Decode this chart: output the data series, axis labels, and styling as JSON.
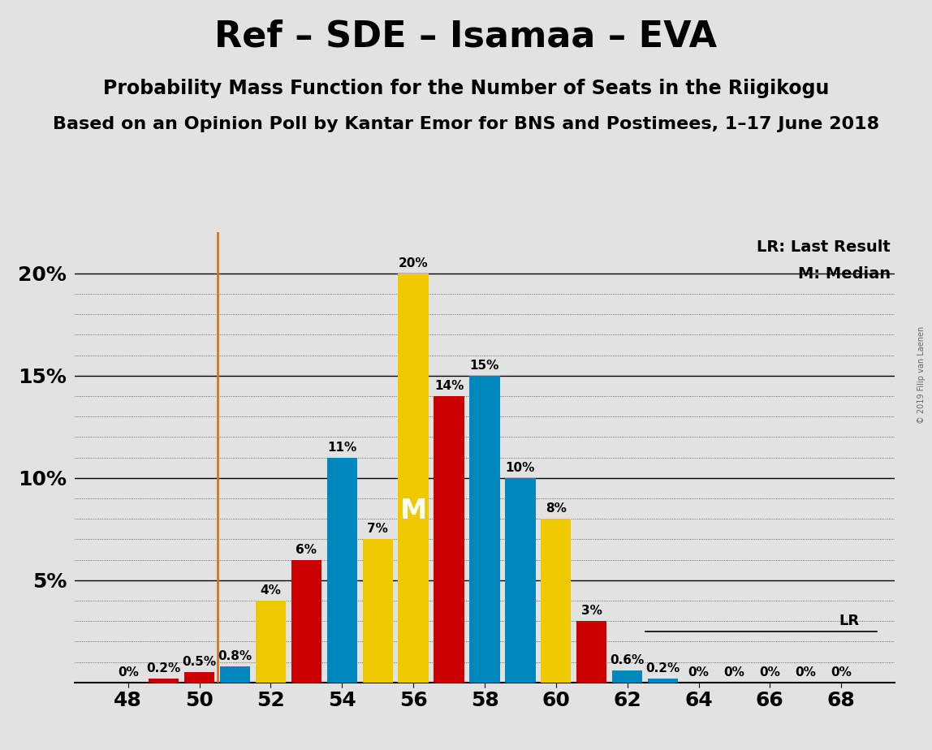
{
  "title": "Ref – SDE – Isamaa – EVA",
  "subtitle1": "Probability Mass Function for the Number of Seats in the Riigikogu",
  "subtitle2": "Based on an Opinion Poll by Kantar Emor for BNS and Postimees, 1–17 June 2018",
  "copyright": "© 2019 Filip van Laenen",
  "background_color": "#e2e2e2",
  "plot_bg_color": "#e2e2e2",
  "bar_data": [
    {
      "seat": 48,
      "color": "red",
      "value": 0.0,
      "label": "0%"
    },
    {
      "seat": 49,
      "color": "red",
      "value": 0.2,
      "label": "0.2%"
    },
    {
      "seat": 50,
      "color": "red",
      "value": 0.5,
      "label": "0.5%"
    },
    {
      "seat": 51,
      "color": "blue",
      "value": 0.8,
      "label": "0.8%"
    },
    {
      "seat": 52,
      "color": "yellow",
      "value": 4.0,
      "label": "4%"
    },
    {
      "seat": 53,
      "color": "red",
      "value": 6.0,
      "label": "6%"
    },
    {
      "seat": 54,
      "color": "blue",
      "value": 11.0,
      "label": "11%"
    },
    {
      "seat": 55,
      "color": "yellow",
      "value": 7.0,
      "label": "7%"
    },
    {
      "seat": 56,
      "color": "yellow",
      "value": 20.0,
      "label": "20%"
    },
    {
      "seat": 57,
      "color": "red",
      "value": 14.0,
      "label": "14%"
    },
    {
      "seat": 58,
      "color": "blue",
      "value": 15.0,
      "label": "15%"
    },
    {
      "seat": 59,
      "color": "blue",
      "value": 10.0,
      "label": "10%"
    },
    {
      "seat": 60,
      "color": "yellow",
      "value": 8.0,
      "label": "8%"
    },
    {
      "seat": 61,
      "color": "red",
      "value": 3.0,
      "label": "3%"
    },
    {
      "seat": 62,
      "color": "blue",
      "value": 0.6,
      "label": "0.6%"
    },
    {
      "seat": 63,
      "color": "blue",
      "value": 0.2,
      "label": "0.2%"
    },
    {
      "seat": 64,
      "color": "blue",
      "value": 0.0,
      "label": "0%"
    },
    {
      "seat": 65,
      "color": "blue",
      "value": 0.0,
      "label": "0%"
    },
    {
      "seat": 66,
      "color": "blue",
      "value": 0.0,
      "label": "0%"
    },
    {
      "seat": 67,
      "color": "blue",
      "value": 0.0,
      "label": "0%"
    },
    {
      "seat": 68,
      "color": "blue",
      "value": 0.0,
      "label": "0%"
    }
  ],
  "last_result_x": 50.5,
  "median_bar_seat": 56,
  "median_label": "M",
  "lr_line_y": 2.5,
  "ylim": [
    0,
    22
  ],
  "xlim": [
    46.5,
    69.5
  ],
  "yticks": [
    5,
    10,
    15,
    20
  ],
  "ytick_labels": [
    "5%",
    "10%",
    "15%",
    "20%"
  ],
  "xticks": [
    48,
    50,
    52,
    54,
    56,
    58,
    60,
    62,
    64,
    66,
    68
  ],
  "bar_width": 0.85,
  "bar_color_red": "#cc0000",
  "bar_color_blue": "#0087be",
  "bar_color_yellow": "#f0c800",
  "vline_color": "#d4761e",
  "legend_lr": "LR: Last Result",
  "legend_m": "M: Median",
  "annot_fontsize": 11,
  "axis_tick_fontsize": 18,
  "title_fontsize": 32,
  "subtitle1_fontsize": 17,
  "subtitle2_fontsize": 16
}
